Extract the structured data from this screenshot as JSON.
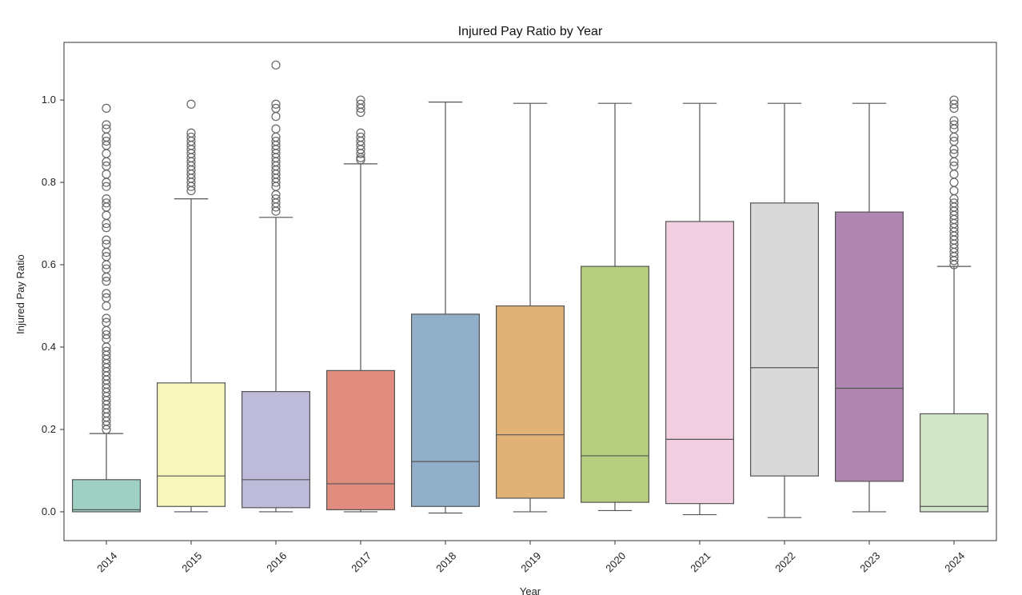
{
  "chart_data": {
    "type": "box",
    "title": "Injured Pay Ratio by Year",
    "xlabel": "Year",
    "ylabel": "Injured Pay Ratio",
    "ylim": [
      -0.07,
      1.14
    ],
    "yticks": [
      0.0,
      0.2,
      0.4,
      0.6,
      0.8,
      1.0
    ],
    "ytick_labels": [
      "0.0",
      "0.2",
      "0.4",
      "0.6",
      "0.8",
      "1.0"
    ],
    "grid": false,
    "categories": [
      "2014",
      "2015",
      "2016",
      "2017",
      "2018",
      "2019",
      "2020",
      "2021",
      "2022",
      "2023",
      "2024"
    ],
    "boxes": [
      {
        "category": "2014",
        "color": "#9ed0c3",
        "whislo": 0.0,
        "q1": 0.0,
        "median": 0.005,
        "q3": 0.078,
        "whishi": 0.19,
        "outliers": [
          0.2,
          0.21,
          0.22,
          0.23,
          0.24,
          0.25,
          0.26,
          0.27,
          0.28,
          0.29,
          0.3,
          0.31,
          0.32,
          0.33,
          0.34,
          0.35,
          0.36,
          0.37,
          0.38,
          0.39,
          0.4,
          0.42,
          0.43,
          0.44,
          0.46,
          0.47,
          0.5,
          0.52,
          0.53,
          0.56,
          0.57,
          0.59,
          0.6,
          0.62,
          0.63,
          0.65,
          0.66,
          0.69,
          0.7,
          0.72,
          0.74,
          0.75,
          0.76,
          0.79,
          0.8,
          0.82,
          0.84,
          0.85,
          0.87,
          0.89,
          0.9,
          0.91,
          0.93,
          0.94,
          0.98
        ]
      },
      {
        "category": "2015",
        "color": "#f7f7bb",
        "whislo": 0.0,
        "q1": 0.013,
        "median": 0.087,
        "q3": 0.313,
        "whishi": 0.76,
        "outliers": [
          0.78,
          0.79,
          0.8,
          0.81,
          0.82,
          0.83,
          0.84,
          0.85,
          0.86,
          0.87,
          0.88,
          0.89,
          0.9,
          0.91,
          0.92,
          0.99
        ]
      },
      {
        "category": "2016",
        "color": "#bebad9",
        "whislo": 0.0,
        "q1": 0.01,
        "median": 0.078,
        "q3": 0.292,
        "whishi": 0.715,
        "outliers": [
          0.73,
          0.74,
          0.75,
          0.76,
          0.77,
          0.79,
          0.8,
          0.81,
          0.82,
          0.83,
          0.84,
          0.85,
          0.86,
          0.87,
          0.88,
          0.89,
          0.9,
          0.91,
          0.93,
          0.96,
          0.98,
          0.99,
          1.085
        ]
      },
      {
        "category": "2017",
        "color": "#e08c7e",
        "whislo": 0.0,
        "q1": 0.005,
        "median": 0.068,
        "q3": 0.343,
        "whishi": 0.845,
        "outliers": [
          0.855,
          0.86,
          0.87,
          0.88,
          0.89,
          0.9,
          0.91,
          0.92,
          0.97,
          0.98,
          0.99,
          1.0
        ]
      },
      {
        "category": "2018",
        "color": "#91afc9",
        "whislo": -0.003,
        "q1": 0.013,
        "median": 0.122,
        "q3": 0.48,
        "whishi": 0.995,
        "outliers": []
      },
      {
        "category": "2019",
        "color": "#e1b278",
        "whislo": 0.0,
        "q1": 0.033,
        "median": 0.187,
        "q3": 0.5,
        "whishi": 0.992,
        "outliers": []
      },
      {
        "category": "2020",
        "color": "#b6cf7e",
        "whislo": 0.003,
        "q1": 0.023,
        "median": 0.136,
        "q3": 0.596,
        "whishi": 0.992,
        "outliers": []
      },
      {
        "category": "2021",
        "color": "#f2cfe0",
        "whislo": -0.007,
        "q1": 0.02,
        "median": 0.176,
        "q3": 0.705,
        "whishi": 0.992,
        "outliers": []
      },
      {
        "category": "2022",
        "color": "#d9d9d9",
        "whislo": -0.014,
        "q1": 0.087,
        "median": 0.35,
        "q3": 0.75,
        "whishi": 0.992,
        "outliers": []
      },
      {
        "category": "2023",
        "color": "#ae86b0",
        "whislo": 0.0,
        "q1": 0.074,
        "median": 0.3,
        "q3": 0.728,
        "whishi": 0.992,
        "outliers": []
      },
      {
        "category": "2024",
        "color": "#d2e5c8",
        "whislo": 0.0,
        "q1": 0.0,
        "median": 0.013,
        "q3": 0.238,
        "whishi": 0.596,
        "outliers": [
          0.6,
          0.61,
          0.62,
          0.63,
          0.64,
          0.65,
          0.66,
          0.67,
          0.68,
          0.69,
          0.7,
          0.71,
          0.72,
          0.73,
          0.74,
          0.75,
          0.76,
          0.78,
          0.8,
          0.82,
          0.84,
          0.85,
          0.87,
          0.88,
          0.9,
          0.91,
          0.93,
          0.94,
          0.95,
          0.98,
          0.99,
          1.0
        ]
      }
    ]
  }
}
